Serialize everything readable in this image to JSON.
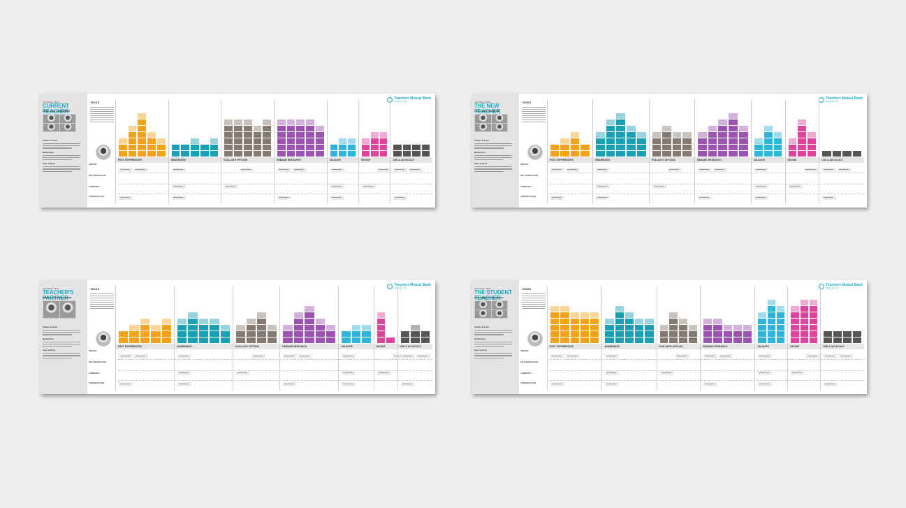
{
  "brand": {
    "name": "Teachers Mutual Bank",
    "tagline": "We get you. Too."
  },
  "boards": [
    {
      "kicker": "JOURNEY MAP",
      "title": "CURRENT TEACHER",
      "subtitle": "HOME LOAN ACQUISITION",
      "photo_count": 4,
      "tasks_label": "TASKS",
      "persona_headings": [
        "Thinks & Feels",
        "Behaviours",
        "Says & Does"
      ],
      "row_labels": [
        "SERVICE",
        "SELF-INTERACTION",
        "COMMUNITY",
        "CORPORATE FEE"
      ],
      "stages": [
        {
          "label": "PAST EXPERIENCES",
          "color": "#f2a31b",
          "cols": [
            3,
            5,
            7,
            4,
            3
          ]
        },
        {
          "label": "AWARENESS",
          "color": "#1aa0b4",
          "cols": [
            2,
            2,
            3,
            2,
            3
          ]
        },
        {
          "label": "EVALUATE OPTIONS",
          "color": "#857a71",
          "cols": [
            6,
            6,
            6,
            5,
            6
          ]
        },
        {
          "label": "DEMAND RESEARCH",
          "color": "#9b52b0",
          "cols": [
            6,
            6,
            6,
            6,
            5
          ]
        },
        {
          "label": "VALIDATE",
          "color": "#2fb4dc",
          "cols": [
            2,
            3,
            3
          ]
        },
        {
          "label": "DECIDE",
          "color": "#e0439c",
          "cols": [
            3,
            4,
            4
          ]
        },
        {
          "label": "USE & ADVOCACY",
          "color": "#555555",
          "cols": [
            2,
            2,
            2,
            2
          ]
        }
      ]
    },
    {
      "kicker": "JOURNEY MAP",
      "title": "THE NEW TEACHER",
      "subtitle": "CAR LOAN ACQUISITION",
      "photo_count": 4,
      "tasks_label": "TASKS",
      "persona_headings": [
        "Thinks & Feels",
        "Behaviours",
        "Says & Does"
      ],
      "row_labels": [
        "SERVICE",
        "SELF-INTERACTION",
        "COMMUNITY",
        "CORPORATE FEE"
      ],
      "stages": [
        {
          "label": "PAST EXPERIENCES",
          "color": "#f2a31b",
          "cols": [
            2,
            3,
            4,
            2
          ]
        },
        {
          "label": "AWARENESS",
          "color": "#1aa0b4",
          "cols": [
            4,
            6,
            7,
            5,
            4
          ]
        },
        {
          "label": "EVALUATE OPTIONS",
          "color": "#857a71",
          "cols": [
            4,
            5,
            4,
            4
          ]
        },
        {
          "label": "DEMAND RESEARCH",
          "color": "#9b52b0",
          "cols": [
            4,
            5,
            6,
            7,
            5
          ]
        },
        {
          "label": "VALIDATE",
          "color": "#2fb4dc",
          "cols": [
            3,
            5,
            4
          ]
        },
        {
          "label": "DECIDE",
          "color": "#e0439c",
          "cols": [
            3,
            6,
            4
          ]
        },
        {
          "label": "USE & ADVOCACY",
          "color": "#555555",
          "cols": [
            1,
            1,
            1,
            1
          ]
        }
      ]
    },
    {
      "kicker": "JOURNEY MAP",
      "title": "TEACHER'S PARTNER",
      "subtitle": "CREDIT CARD ACQUISITION",
      "photo_count": 2,
      "tasks_label": "TASKS",
      "persona_headings": [
        "Thinks & Feels",
        "Behaviours",
        "Says & Does"
      ],
      "row_labels": [
        "SERVICE",
        "SELF-INTERACTION",
        "COMMUNITY",
        "CORPORATE FEE"
      ],
      "stages": [
        {
          "label": "PAST EXPERIENCES",
          "color": "#f2a31b",
          "cols": [
            2,
            3,
            4,
            3,
            4
          ]
        },
        {
          "label": "AWARENESS",
          "color": "#1aa0b4",
          "cols": [
            4,
            5,
            4,
            4,
            3
          ]
        },
        {
          "label": "EVALUATE OPTIONS",
          "color": "#857a71",
          "cols": [
            3,
            4,
            5,
            3
          ]
        },
        {
          "label": "DEMAND RESEARCH",
          "color": "#9b52b0",
          "cols": [
            3,
            5,
            6,
            4,
            3
          ]
        },
        {
          "label": "VALIDATE",
          "color": "#2fb4dc",
          "cols": [
            2,
            3,
            3
          ]
        },
        {
          "label": "DECIDE",
          "color": "#e0439c",
          "cols": [
            5,
            1
          ]
        },
        {
          "label": "USE & ADVOCACY",
          "color": "#555555",
          "cols": [
            2,
            3,
            2
          ]
        }
      ]
    },
    {
      "kicker": "JOURNEY MAP",
      "title": "THE STUDENT TEACHER",
      "subtitle": "NEW MEMBER ACQUISITION",
      "photo_count": 4,
      "tasks_label": "TASKS",
      "persona_headings": [
        "Thinks & Feels",
        "Behaviours",
        "Says & Does"
      ],
      "row_labels": [
        "SERVICE",
        "SELF-INTERACTION",
        "COMMUNITY",
        "CORPORATE FEE"
      ],
      "stages": [
        {
          "label": "PAST EXPERIENCES",
          "color": "#f2a31b",
          "cols": [
            6,
            6,
            5,
            5,
            5
          ]
        },
        {
          "label": "AWARENESS",
          "color": "#1aa0b4",
          "cols": [
            4,
            6,
            5,
            4,
            4
          ]
        },
        {
          "label": "EVALUATE OPTIONS",
          "color": "#857a71",
          "cols": [
            3,
            5,
            4,
            3
          ]
        },
        {
          "label": "DEMAND RESEARCH",
          "color": "#9b52b0",
          "cols": [
            4,
            4,
            3,
            3,
            3
          ]
        },
        {
          "label": "VALIDATE",
          "color": "#2fb4dc",
          "cols": [
            5,
            7,
            6
          ]
        },
        {
          "label": "DECIDE",
          "color": "#e0439c",
          "cols": [
            6,
            7,
            7
          ]
        },
        {
          "label": "USE & ADVOCACY",
          "color": "#555555",
          "cols": [
            2,
            2,
            2,
            2
          ]
        }
      ]
    }
  ]
}
